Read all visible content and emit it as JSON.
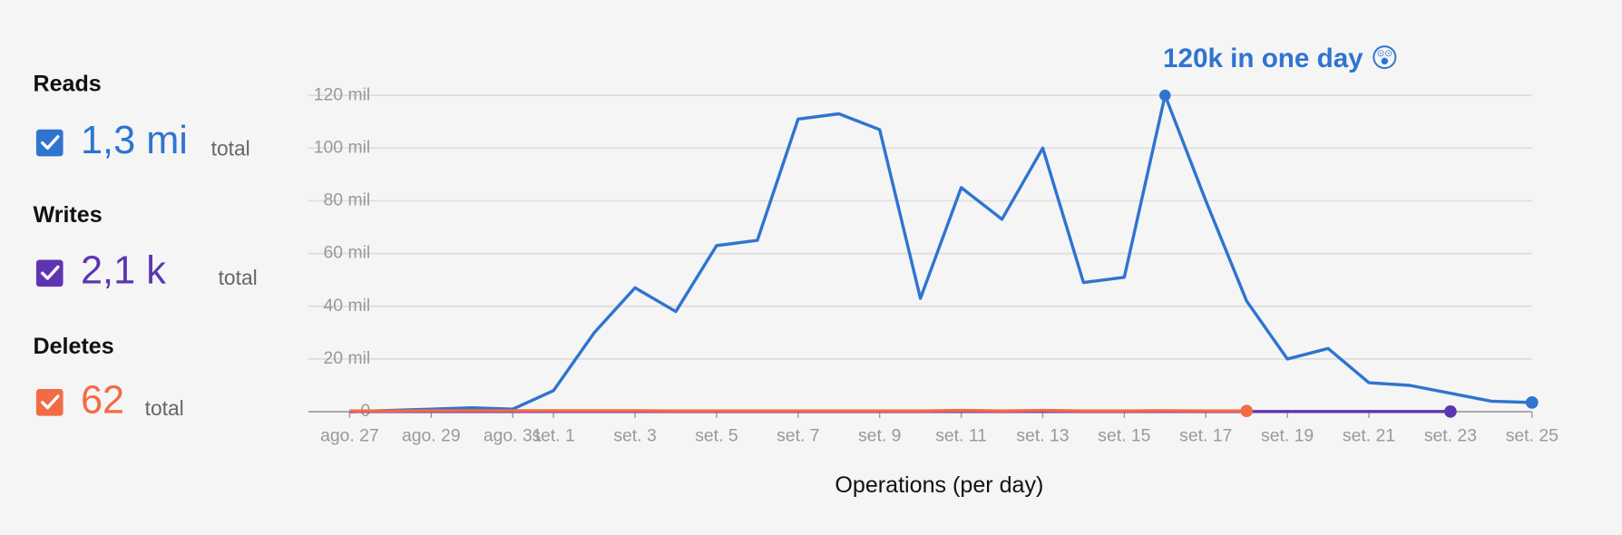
{
  "chart_data": {
    "type": "line",
    "x_label": "Operations (per day)",
    "total_caption": "total",
    "annotation": "120k in one day 😲",
    "categories": [
      "ago. 27",
      null,
      "ago. 29",
      null,
      "ago. 31",
      "set. 1",
      null,
      "set. 3",
      null,
      "set. 5",
      null,
      "set. 7",
      null,
      "set. 9",
      null,
      "set. 11",
      null,
      "set. 13",
      null,
      "set. 15",
      null,
      "set. 17",
      null,
      "set. 19",
      null,
      "set. 21",
      null,
      "set. 23",
      null,
      "set. 25"
    ],
    "ylim": [
      0,
      120
    ],
    "yticks": [
      0,
      {
        "value": 20,
        "label": "20 mil"
      },
      {
        "value": 40,
        "label": "40 mil"
      },
      {
        "value": 60,
        "label": "60 mil"
      },
      {
        "value": 80,
        "label": "80 mil"
      },
      {
        "value": 100,
        "label": "100 mil"
      },
      {
        "value": 120,
        "label": "120 mil"
      }
    ],
    "grid": true,
    "series": [
      {
        "name": "Reads",
        "total": "1,3 mi",
        "color": "#2f74d0",
        "values": [
          0,
          0.5,
          1,
          1.5,
          1,
          8,
          30,
          47,
          38,
          63,
          65,
          111,
          113,
          107,
          43,
          85,
          73,
          100,
          49,
          51,
          120,
          80,
          42,
          20,
          24,
          11,
          10,
          7,
          4,
          3.5
        ]
      },
      {
        "name": "Writes",
        "total": "2,1 k",
        "color": "#5e35b1",
        "values": [
          0.1,
          0.1,
          0.1,
          0.1,
          0.1,
          0.1,
          0.1,
          0.1,
          0.1,
          0.1,
          0.1,
          0.1,
          0.1,
          0.1,
          0.1,
          0.1,
          0.1,
          0.1,
          0.1,
          0.1,
          0.1,
          0.1,
          0.1,
          0.1,
          0.1,
          0.1,
          0.1,
          0.1,
          null,
          null
        ]
      },
      {
        "name": "Deletes",
        "total": "62",
        "color": "#f26b43",
        "values": [
          0.3,
          0.3,
          0.4,
          0.4,
          0.4,
          0.4,
          0.4,
          0.4,
          0.3,
          0.3,
          0.3,
          0.3,
          0.3,
          0.3,
          0.3,
          0.5,
          0.3,
          0.5,
          0.3,
          0.3,
          0.4,
          0.3,
          0.3,
          null,
          null,
          null,
          null,
          null,
          null,
          null
        ]
      }
    ]
  }
}
